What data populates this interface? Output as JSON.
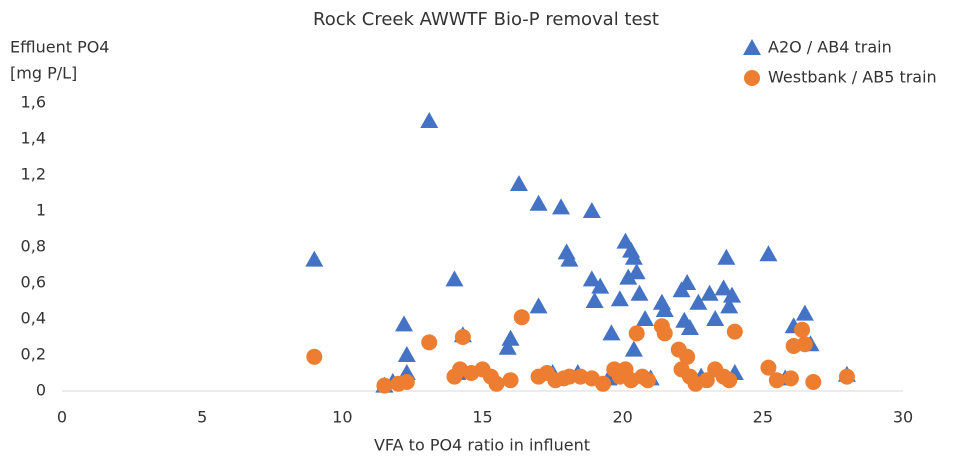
{
  "chart_data": {
    "type": "scatter",
    "title": "Rock Creek AWWTF Bio-P removal test",
    "xlabel": "VFA to PO4 ratio in influent",
    "ylabel": [
      "Effluent PO4",
      "[mg P/L]"
    ],
    "xlim": [
      0,
      30
    ],
    "xticks": [
      0,
      5,
      10,
      15,
      20,
      25,
      30
    ],
    "ylim": [
      0,
      1.6
    ],
    "yticks": [
      0,
      {
        "value": 0.2,
        "label": "0,2"
      },
      {
        "value": 0.4,
        "label": "0,4"
      },
      {
        "value": 0.6,
        "label": "0,6"
      },
      {
        "value": 0.8,
        "label": "0,8"
      },
      1,
      {
        "value": 1.2,
        "label": "1,2"
      },
      {
        "value": 1.4,
        "label": "1,4"
      },
      {
        "value": 1.6,
        "label": "1,6"
      }
    ],
    "grid": false,
    "legend": "top-right",
    "series": [
      {
        "name": "A2O / AB4 train",
        "color": "#4472c4",
        "marker": "triangle",
        "x": [
          9.0,
          13.1,
          12.2,
          12.3,
          12.3,
          11.5,
          11.8,
          14.0,
          14.3,
          14.1,
          16.3,
          17.0,
          17.0,
          16.0,
          15.9,
          17.8,
          18.0,
          18.1,
          18.9,
          18.9,
          19.0,
          19.2,
          19.6,
          19.9,
          20.1,
          20.3,
          20.4,
          20.2,
          20.5,
          20.6,
          20.8,
          20.4,
          21.4,
          21.5,
          22.1,
          22.3,
          22.2,
          22.4,
          22.7,
          23.1,
          23.3,
          23.6,
          23.7,
          23.8,
          23.9,
          24.0,
          25.2,
          26.1,
          26.5,
          26.7,
          28.0,
          17.5,
          18.4,
          19.5,
          21.0,
          22.8,
          25.8
        ],
        "values": [
          0.73,
          1.5,
          0.37,
          0.2,
          0.1,
          0.03,
          0.05,
          0.62,
          0.31,
          0.1,
          1.15,
          1.04,
          0.47,
          0.29,
          0.24,
          1.02,
          0.77,
          0.73,
          1.0,
          0.62,
          0.5,
          0.58,
          0.32,
          0.51,
          0.83,
          0.78,
          0.74,
          0.63,
          0.66,
          0.54,
          0.4,
          0.23,
          0.49,
          0.45,
          0.56,
          0.6,
          0.39,
          0.35,
          0.49,
          0.54,
          0.4,
          0.57,
          0.74,
          0.47,
          0.53,
          0.1,
          0.76,
          0.36,
          0.43,
          0.26,
          0.09,
          0.1,
          0.1,
          0.07,
          0.07,
          0.08,
          0.07
        ]
      },
      {
        "name": "Westbank / AB5 train",
        "color": "#ed7d31",
        "marker": "circle",
        "x": [
          9.0,
          11.5,
          12.0,
          12.3,
          13.1,
          14.3,
          14.0,
          14.2,
          14.6,
          15.0,
          15.3,
          15.5,
          16.0,
          16.4,
          17.0,
          17.3,
          17.6,
          17.9,
          18.1,
          18.5,
          18.9,
          19.3,
          19.7,
          19.9,
          20.1,
          20.3,
          20.5,
          20.7,
          20.9,
          21.4,
          21.5,
          22.0,
          22.3,
          22.1,
          22.4,
          22.6,
          23.0,
          23.3,
          23.6,
          23.8,
          24.0,
          25.2,
          25.5,
          26.0,
          26.1,
          26.4,
          26.5,
          26.8,
          28.0
        ],
        "values": [
          0.19,
          0.03,
          0.04,
          0.05,
          0.27,
          0.3,
          0.08,
          0.12,
          0.1,
          0.12,
          0.08,
          0.04,
          0.06,
          0.41,
          0.08,
          0.1,
          0.06,
          0.07,
          0.08,
          0.08,
          0.07,
          0.04,
          0.12,
          0.08,
          0.12,
          0.06,
          0.32,
          0.08,
          0.06,
          0.36,
          0.32,
          0.23,
          0.19,
          0.12,
          0.08,
          0.04,
          0.06,
          0.12,
          0.08,
          0.06,
          0.33,
          0.13,
          0.06,
          0.07,
          0.25,
          0.34,
          0.26,
          0.05,
          0.08
        ]
      }
    ]
  }
}
